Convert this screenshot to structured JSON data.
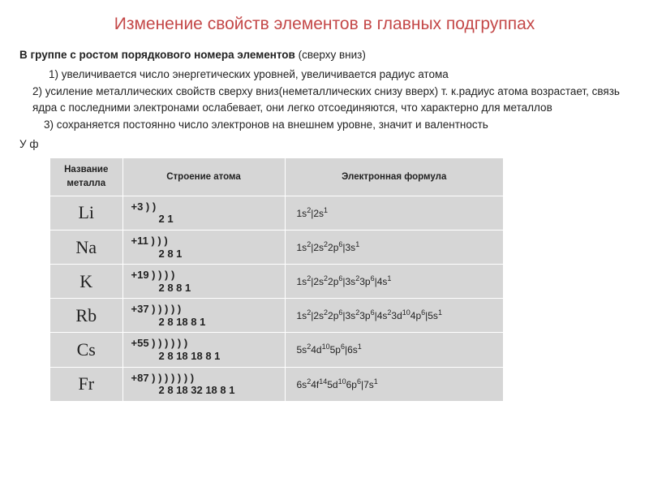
{
  "title": "Изменение свойств элементов в главных подгруппах",
  "intro_bold": "В группе с ростом порядкового номера элементов",
  "intro_tail": " (сверху вниз)",
  "point1": "1)    увеличивается число энергетических уровней, увеличивается радиус атома",
  "point2": "2) усиление металлических свойств сверху вниз(неметаллических снизу вверх)  т. к.радиус атома возрастает, связь ядра с последними электронами ослабевает, они легко отсоединяются, что характерно для металлов",
  "point3": "3)  сохраняется   постоянно число электронов на внешнем уровне, значит и валентность",
  "uf": "У ф",
  "table": {
    "headers": {
      "name": "Название металла",
      "structure": "Строение атома",
      "formula": "Электронная формула"
    },
    "rows": [
      {
        "metal": "Li",
        "struct_l1": "+3   )  )",
        "struct_l2": "2  1",
        "formula_html": "1s<sup>2</sup>|2s<sup>1</sup>"
      },
      {
        "metal": "Na",
        "struct_l1": "+11  )  )  )",
        "struct_l2": "2 8 1",
        "formula_html": "1s<sup>2</sup>|2s<sup>2</sup>2p<sup>6</sup>|3s<sup>1</sup>"
      },
      {
        "metal": "K",
        "struct_l1": "+19  )  )  )  )",
        "struct_l2": "2 8 8 1",
        "formula_html": "1s<sup>2</sup>|2s<sup>2</sup>2p<sup>6</sup>|3s<sup>2</sup>3p<sup>6</sup>|4s<sup>1</sup>"
      },
      {
        "metal": "Rb",
        "struct_l1": "+37  )  )  )  )  )",
        "struct_l2": "2 8 18 8 1",
        "formula_html": "1s<sup>2</sup>|2s<sup>2</sup>2p<sup>6</sup>|3s<sup>2</sup>3p<sup>6</sup>|4s<sup>2</sup>3d<sup>10</sup>4p<sup>6</sup>|5s<sup>1</sup>"
      },
      {
        "metal": "Cs",
        "struct_l1": "+55  )  )  )  )  )  )",
        "struct_l2": "2 8 18 18 8 1",
        "formula_html": "5s<sup>2</sup>4d<sup>10</sup>5p<sup>6</sup>|6s<sup>1</sup>"
      },
      {
        "metal": "Fr",
        "struct_l1": "+87  )  )  )  )  )  )  )",
        "struct_l2": "2 8 18 32 18 8 1",
        "formula_html": "6s<sup>2</sup>4f<sup>14</sup>5d<sup>10</sup>6p<sup>6</sup>|7s<sup>1</sup>"
      }
    ],
    "colors": {
      "cell_bg": "#d6d6d6",
      "border": "#ffffff",
      "title_color": "#c44848",
      "text_color": "#222222"
    }
  }
}
